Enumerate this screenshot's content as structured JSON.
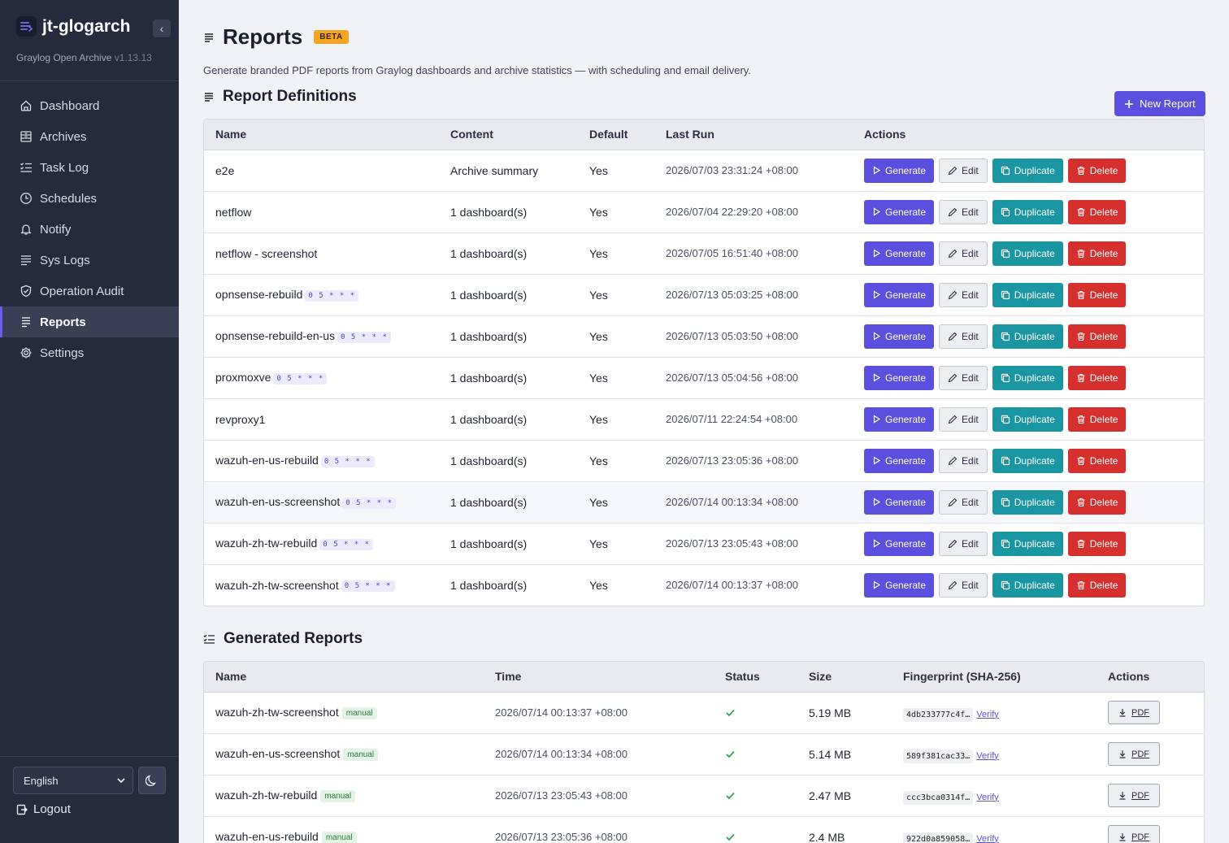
{
  "app": {
    "name": "jt-glogarch",
    "subtitle": "Graylog Open Archive",
    "version": "v1.13.13",
    "collapse_glyph": "‹"
  },
  "sidebar": {
    "items": [
      {
        "label": "Dashboard",
        "icon": "home-icon"
      },
      {
        "label": "Archives",
        "icon": "archive-icon"
      },
      {
        "label": "Task Log",
        "icon": "list-check-icon"
      },
      {
        "label": "Schedules",
        "icon": "clock-icon"
      },
      {
        "label": "Notify",
        "icon": "bell-icon"
      },
      {
        "label": "Sys Logs",
        "icon": "lines-icon"
      },
      {
        "label": "Operation Audit",
        "icon": "shield-icon"
      },
      {
        "label": "Reports",
        "icon": "report-icon",
        "active": true
      },
      {
        "label": "Settings",
        "icon": "gear-icon"
      }
    ],
    "language": "English",
    "logout": "Logout"
  },
  "page": {
    "title": "Reports",
    "badge": "BETA",
    "description": "Generate branded PDF reports from Graylog dashboards and archive statistics — with scheduling and email delivery."
  },
  "definitions": {
    "title": "Report Definitions",
    "new_button": "New Report",
    "columns": [
      "Name",
      "Content",
      "Default",
      "Last Run",
      "Actions"
    ],
    "actions": {
      "generate": "Generate",
      "edit": "Edit",
      "duplicate": "Duplicate",
      "delete": "Delete"
    },
    "rows": [
      {
        "name": "e2e",
        "schedule": "",
        "content": "Archive summary",
        "default": "Yes",
        "last_run": "2026/07/03 23:31:24 +08:00"
      },
      {
        "name": "netflow",
        "schedule": "",
        "content": "1 dashboard(s)",
        "default": "Yes",
        "last_run": "2026/07/04 22:29:20 +08:00"
      },
      {
        "name": "netflow - screenshot",
        "schedule": "",
        "content": "1 dashboard(s)",
        "default": "Yes",
        "last_run": "2026/07/05 16:51:40 +08:00"
      },
      {
        "name": "opnsense-rebuild",
        "schedule": "0 5 * * *",
        "content": "1 dashboard(s)",
        "default": "Yes",
        "last_run": "2026/07/13 05:03:25 +08:00"
      },
      {
        "name": "opnsense-rebuild-en-us",
        "schedule": "0 5 * * *",
        "content": "1 dashboard(s)",
        "default": "Yes",
        "last_run": "2026/07/13 05:03:50 +08:00"
      },
      {
        "name": "proxmoxve",
        "schedule": "0 5 * * *",
        "content": "1 dashboard(s)",
        "default": "Yes",
        "last_run": "2026/07/13 05:04:56 +08:00"
      },
      {
        "name": "revproxy1",
        "schedule": "",
        "content": "1 dashboard(s)",
        "default": "Yes",
        "last_run": "2026/07/11 22:24:54 +08:00"
      },
      {
        "name": "wazuh-en-us-rebuild",
        "schedule": "0 5 * * *",
        "content": "1 dashboard(s)",
        "default": "Yes",
        "last_run": "2026/07/13 23:05:36 +08:00"
      },
      {
        "name": "wazuh-en-us-screenshot",
        "schedule": "0 5 * * *",
        "content": "1 dashboard(s)",
        "default": "Yes",
        "last_run": "2026/07/14 00:13:34 +08:00",
        "hover": true
      },
      {
        "name": "wazuh-zh-tw-rebuild",
        "schedule": "0 5 * * *",
        "content": "1 dashboard(s)",
        "default": "Yes",
        "last_run": "2026/07/13 23:05:43 +08:00"
      },
      {
        "name": "wazuh-zh-tw-screenshot",
        "schedule": "0 5 * * *",
        "content": "1 dashboard(s)",
        "default": "Yes",
        "last_run": "2026/07/14 00:13:37 +08:00"
      }
    ]
  },
  "generated": {
    "title": "Generated Reports",
    "columns": [
      "Name",
      "Time",
      "Status",
      "Size",
      "Fingerprint (SHA-256)",
      "Actions"
    ],
    "verify_label": "Verify",
    "pdf_label": "PDF",
    "rows": [
      {
        "name": "wazuh-zh-tw-screenshot",
        "tag": "manual",
        "time": "2026/07/14 00:13:37 +08:00",
        "status": "success",
        "size": "5.19 MB",
        "fingerprint": "4db233777c4f…"
      },
      {
        "name": "wazuh-en-us-screenshot",
        "tag": "manual",
        "time": "2026/07/14 00:13:34 +08:00",
        "status": "success",
        "size": "5.14 MB",
        "fingerprint": "589f381cac33…"
      },
      {
        "name": "wazuh-zh-tw-rebuild",
        "tag": "manual",
        "time": "2026/07/13 23:05:43 +08:00",
        "status": "success",
        "size": "2.47 MB",
        "fingerprint": "ccc3bca0314f…"
      },
      {
        "name": "wazuh-en-us-rebuild",
        "tag": "manual",
        "time": "2026/07/13 23:05:36 +08:00",
        "status": "success",
        "size": "2.4 MB",
        "fingerprint": "922d0a859058…"
      }
    ]
  },
  "colors": {
    "sidebar_bg": "#262a3d",
    "accent": "#5b4fe0",
    "duplicate": "#1a96a3",
    "delete": "#d6302e",
    "beta": "#f5a524",
    "success": "#2f9e4a"
  }
}
